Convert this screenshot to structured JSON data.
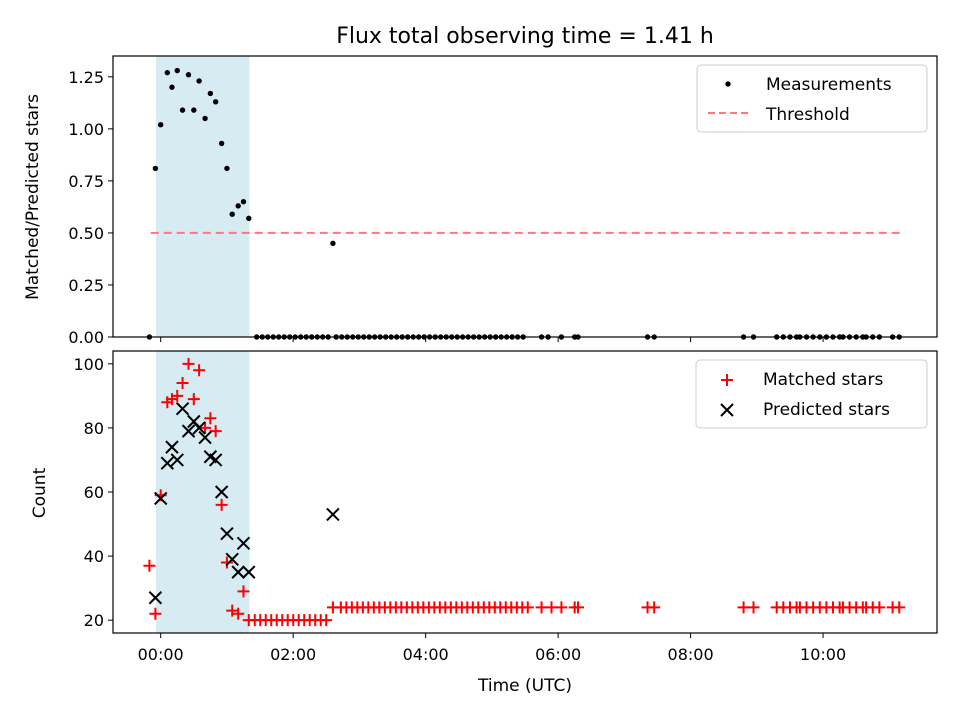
{
  "chart_data": {
    "title": "Flux total observing time = 1.41 h",
    "xlabel": "Time (UTC)",
    "x_unit": "hours since 00:00 UTC",
    "xlim": [
      -0.72,
      11.72
    ],
    "xticks": [
      {
        "v": 0,
        "label": "00:00"
      },
      {
        "v": 2,
        "label": "02:00"
      },
      {
        "v": 4,
        "label": "04:00"
      },
      {
        "v": 6,
        "label": "06:00"
      },
      {
        "v": 8,
        "label": "08:00"
      },
      {
        "v": 10,
        "label": "10:00"
      }
    ],
    "observing_window": {
      "start": -0.07,
      "end": 1.34,
      "color": "#add8e6"
    },
    "panels": [
      {
        "type": "scatter",
        "ylabel": "Matched/Predicted stars",
        "ylim": [
          0,
          1.35
        ],
        "yticks": [
          {
            "v": 0,
            "label": "0.00"
          },
          {
            "v": 0.25,
            "label": "0.25"
          },
          {
            "v": 0.5,
            "label": "0.50"
          },
          {
            "v": 0.75,
            "label": "0.75"
          },
          {
            "v": 1.0,
            "label": "1.00"
          },
          {
            "v": 1.25,
            "label": "1.25"
          }
        ],
        "legend": [
          {
            "label": "Measurements",
            "marker": "dot"
          },
          {
            "label": "Threshold",
            "marker": "dashed"
          }
        ],
        "legend_position": "top-right",
        "threshold": {
          "y": 0.5,
          "x_from": -0.15,
          "x_to": 11.2,
          "color": "#ff7777"
        },
        "series": [
          {
            "name": "Measurements",
            "color": "#000000",
            "points": [
              [
                -0.17,
                0.0
              ],
              [
                -0.08,
                0.81
              ],
              [
                0.0,
                1.02
              ],
              [
                0.1,
                1.27
              ],
              [
                0.17,
                1.2
              ],
              [
                0.25,
                1.28
              ],
              [
                0.33,
                1.09
              ],
              [
                0.42,
                1.26
              ],
              [
                0.5,
                1.09
              ],
              [
                0.58,
                1.23
              ],
              [
                0.67,
                1.05
              ],
              [
                0.75,
                1.17
              ],
              [
                0.83,
                1.13
              ],
              [
                0.92,
                0.93
              ],
              [
                1.0,
                0.81
              ],
              [
                1.08,
                0.59
              ],
              [
                1.17,
                0.63
              ],
              [
                1.25,
                0.65
              ],
              [
                1.33,
                0.57
              ],
              [
                2.6,
                0.45
              ]
            ],
            "zeros_from": 1.45,
            "zeros_to": 2.55,
            "zeros_step": 0.083,
            "zeros_from2": 2.65,
            "zeros_to2": 5.55,
            "zeros_step2": 0.083,
            "zeros_extra": [
              5.75,
              5.85,
              6.05,
              6.25,
              6.3,
              7.35,
              7.45,
              8.8,
              8.95
            ]
          }
        ]
      },
      {
        "type": "scatter",
        "ylabel": "Count",
        "ylim": [
          16,
          104
        ],
        "yticks": [
          {
            "v": 20,
            "label": "20"
          },
          {
            "v": 40,
            "label": "40"
          },
          {
            "v": 60,
            "label": "60"
          },
          {
            "v": 80,
            "label": "80"
          },
          {
            "v": 100,
            "label": "100"
          }
        ],
        "legend": [
          {
            "label": "Matched stars",
            "marker": "plus"
          },
          {
            "label": "Predicted stars",
            "marker": "x"
          }
        ],
        "legend_position": "top-right",
        "series": [
          {
            "name": "Matched stars",
            "color": "#ff0000",
            "points": [
              [
                -0.17,
                37
              ],
              [
                -0.08,
                22
              ],
              [
                0.0,
                59
              ],
              [
                0.1,
                88
              ],
              [
                0.17,
                89
              ],
              [
                0.25,
                90
              ],
              [
                0.33,
                94
              ],
              [
                0.42,
                100
              ],
              [
                0.5,
                89
              ],
              [
                0.58,
                98
              ],
              [
                0.67,
                80
              ],
              [
                0.75,
                83
              ],
              [
                0.83,
                79
              ],
              [
                0.92,
                56
              ],
              [
                1.0,
                38
              ],
              [
                1.08,
                23
              ],
              [
                1.17,
                22
              ],
              [
                1.25,
                29
              ],
              [
                1.33,
                20
              ],
              [
                2.6,
                24
              ]
            ],
            "flat": [
              {
                "from": 1.42,
                "to": 2.52,
                "step": 0.083,
                "y": 20
              },
              {
                "from": 2.72,
                "to": 5.6,
                "step": 0.083,
                "y": 24
              }
            ],
            "extra_x": [
              5.75,
              5.9,
              6.05,
              6.25,
              6.3,
              7.35,
              7.45,
              8.8,
              8.95
            ],
            "extra_y": 24
          },
          {
            "name": "Predicted stars",
            "color": "#000000",
            "points": [
              [
                -0.08,
                27
              ],
              [
                0.0,
                58
              ],
              [
                0.1,
                69
              ],
              [
                0.17,
                74
              ],
              [
                0.25,
                70
              ],
              [
                0.33,
                86
              ],
              [
                0.42,
                79
              ],
              [
                0.5,
                82
              ],
              [
                0.58,
                80
              ],
              [
                0.67,
                77
              ],
              [
                0.75,
                71
              ],
              [
                0.83,
                70
              ],
              [
                0.92,
                60
              ],
              [
                1.0,
                47
              ],
              [
                1.08,
                39
              ],
              [
                1.17,
                35
              ],
              [
                1.25,
                44
              ],
              [
                1.33,
                35
              ],
              [
                2.6,
                53
              ]
            ]
          }
        ]
      }
    ],
    "tail_x_top": [
      9.3,
      9.4,
      9.5,
      9.6,
      9.65,
      9.75,
      9.85,
      9.95,
      10.05,
      10.15,
      10.25,
      10.3,
      10.4,
      10.5,
      10.6,
      10.65,
      10.75,
      10.85,
      11.05,
      11.15
    ],
    "tail_x_bottom": [
      9.3,
      9.4,
      9.5,
      9.6,
      9.65,
      9.75,
      9.85,
      9.95,
      10.05,
      10.15,
      10.25,
      10.3,
      10.4,
      10.5,
      10.6,
      10.65,
      10.75,
      10.85,
      11.05,
      11.15
    ]
  }
}
